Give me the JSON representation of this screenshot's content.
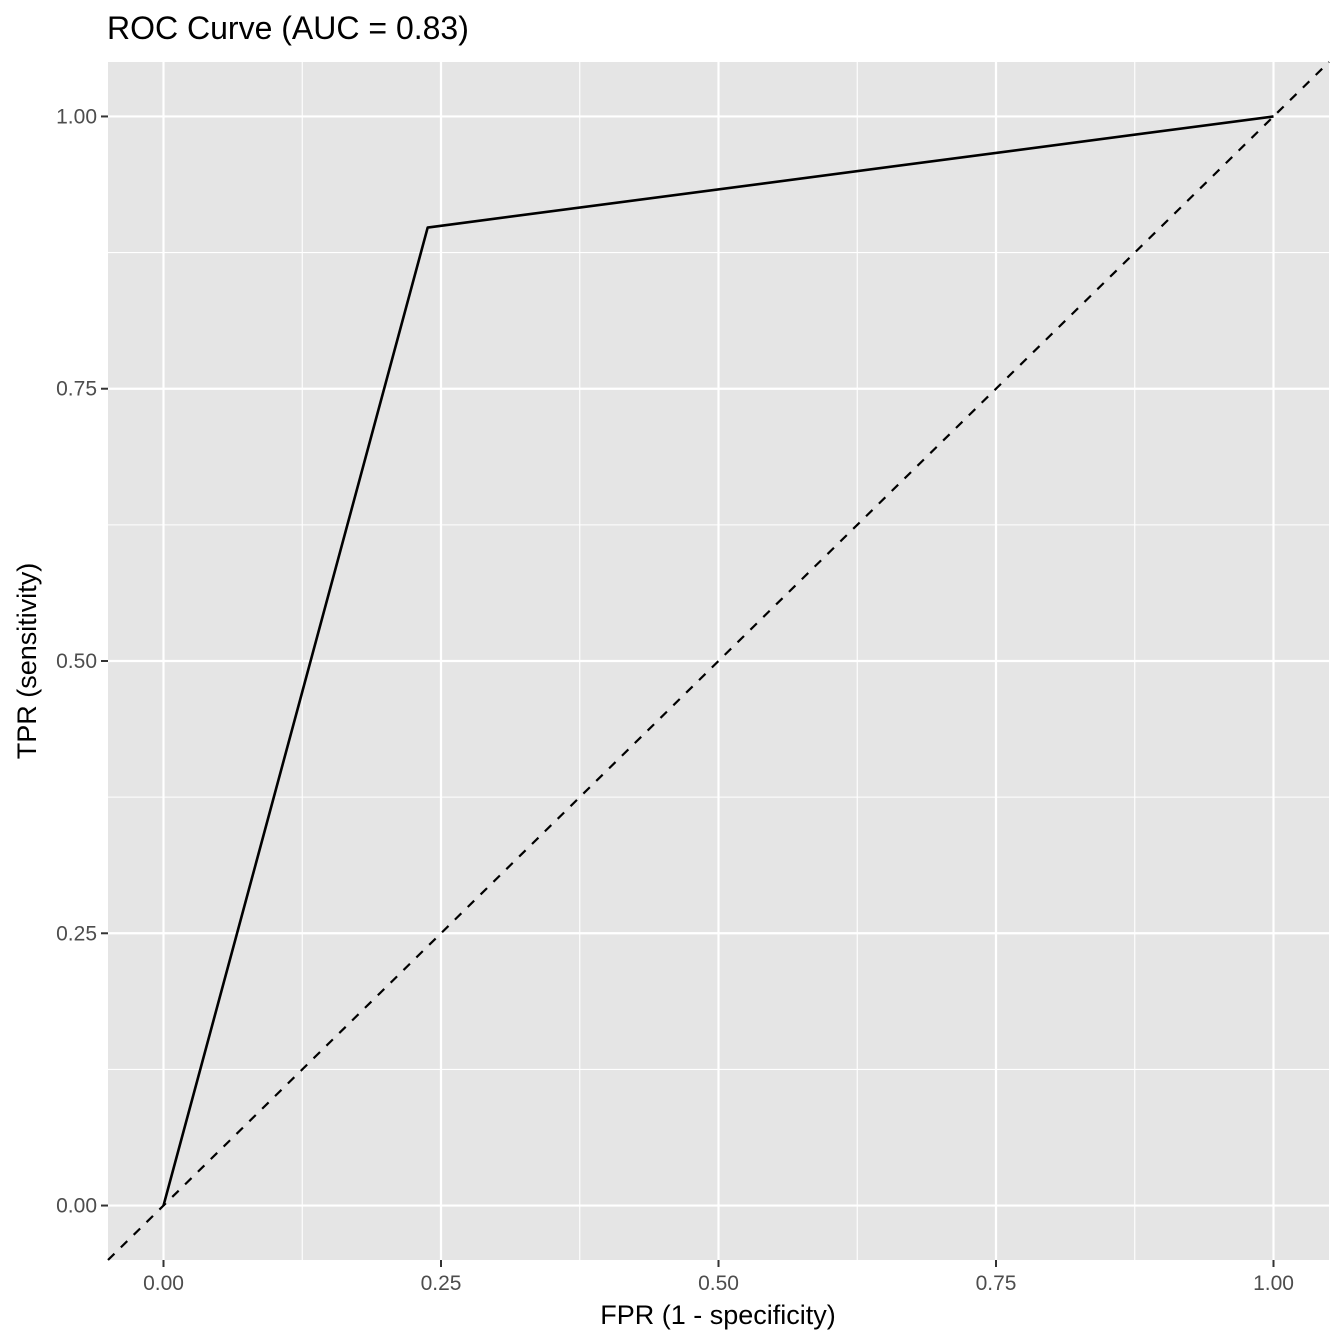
{
  "chart_data": {
    "type": "line",
    "title": "ROC Curve (AUC = 0.83)",
    "xlabel": "FPR (1 - specificity)",
    "ylabel": "TPR (sensitivity)",
    "xlim": [
      -0.05,
      1.05
    ],
    "ylim": [
      -0.05,
      1.05
    ],
    "x_ticks": [
      0.0,
      0.25,
      0.5,
      0.75,
      1.0
    ],
    "x_tick_labels": [
      "0.00",
      "0.25",
      "0.50",
      "0.75",
      "1.00"
    ],
    "y_ticks": [
      0.0,
      0.25,
      0.5,
      0.75,
      1.0
    ],
    "y_tick_labels": [
      "0.00",
      "0.25",
      "0.50",
      "0.75",
      "1.00"
    ],
    "grid": true,
    "series": [
      {
        "name": "ROC curve",
        "style": "solid",
        "color": "#000000",
        "x": [
          0.0,
          0.238,
          1.0
        ],
        "y": [
          0.0,
          0.898,
          1.0
        ]
      }
    ],
    "reference_line": {
      "name": "chance diagonal",
      "style": "dashed",
      "color": "#000000",
      "intercept": 0,
      "slope": 1
    },
    "panel_background": "#e5e5e5",
    "grid_color": "#ffffff",
    "tick_label_color": "#4d4d4d"
  }
}
